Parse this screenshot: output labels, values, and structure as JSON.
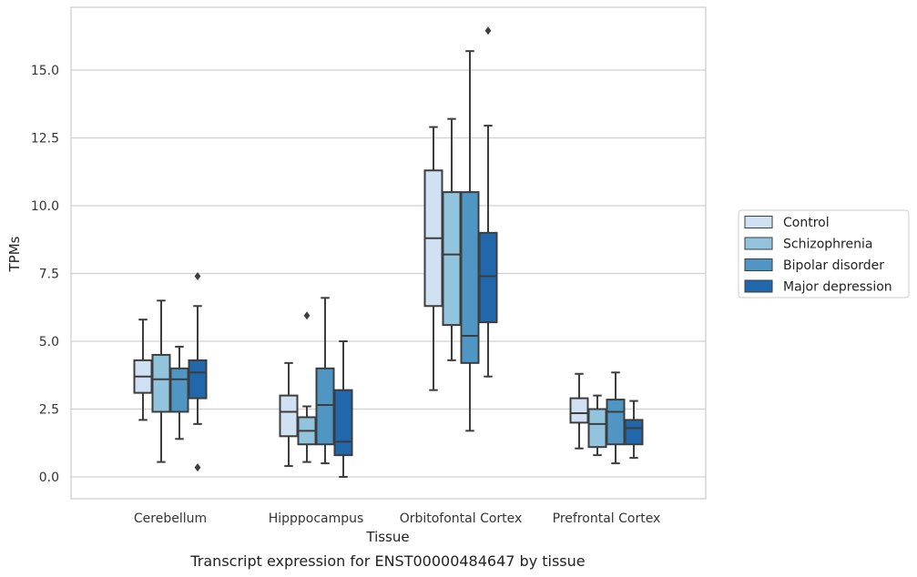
{
  "caption": "Transcript expression for ENST00000484647 by tissue",
  "chart_data": {
    "type": "box",
    "xlabel": "Tissue",
    "ylabel": "TPMs",
    "ylim": [
      -0.8,
      17.5
    ],
    "yticks": [
      0.0,
      2.5,
      5.0,
      7.5,
      10.0,
      12.5,
      15.0
    ],
    "ytick_labels": [
      "0.0",
      "2.5",
      "5.0",
      "7.5",
      "10.0",
      "12.5",
      "15.0"
    ],
    "grid": "horizontal",
    "legend_position": "right",
    "categories": [
      "Cerebellum",
      "Hipppocampus",
      "Orbitofontal Cortex",
      "Prefrontal Cortex"
    ],
    "series": [
      {
        "name": "Control",
        "color": "#cfe1f2",
        "boxes": [
          {
            "whislo": 2.1,
            "q1": 3.1,
            "med": 3.7,
            "q3": 4.3,
            "whishi": 5.8,
            "fliers": []
          },
          {
            "whislo": 0.4,
            "q1": 1.5,
            "med": 2.4,
            "q3": 3.0,
            "whishi": 4.2,
            "fliers": []
          },
          {
            "whislo": 3.2,
            "q1": 6.3,
            "med": 8.8,
            "q3": 11.3,
            "whishi": 12.9,
            "fliers": []
          },
          {
            "whislo": 1.05,
            "q1": 2.0,
            "med": 2.35,
            "q3": 2.9,
            "whishi": 3.8,
            "fliers": []
          }
        ]
      },
      {
        "name": "Schizophrenia",
        "color": "#93c4de",
        "boxes": [
          {
            "whislo": 0.55,
            "q1": 2.4,
            "med": 3.6,
            "q3": 4.5,
            "whishi": 6.5,
            "fliers": []
          },
          {
            "whislo": 0.55,
            "q1": 1.2,
            "med": 1.7,
            "q3": 2.2,
            "whishi": 2.6,
            "fliers": [
              5.95
            ]
          },
          {
            "whislo": 4.3,
            "q1": 5.6,
            "med": 8.2,
            "q3": 10.5,
            "whishi": 13.2,
            "fliers": []
          },
          {
            "whislo": 0.8,
            "q1": 1.1,
            "med": 1.95,
            "q3": 2.5,
            "whishi": 3.0,
            "fliers": []
          }
        ]
      },
      {
        "name": "Bipolar disorder",
        "color": "#4f96c4",
        "boxes": [
          {
            "whislo": 1.4,
            "q1": 2.4,
            "med": 3.6,
            "q3": 4.0,
            "whishi": 4.8,
            "fliers": []
          },
          {
            "whislo": 0.5,
            "q1": 1.2,
            "med": 2.65,
            "q3": 4.0,
            "whishi": 6.6,
            "fliers": []
          },
          {
            "whislo": 1.7,
            "q1": 4.2,
            "med": 5.2,
            "q3": 10.5,
            "whishi": 15.7,
            "fliers": []
          },
          {
            "whislo": 0.5,
            "q1": 1.2,
            "med": 2.4,
            "q3": 2.85,
            "whishi": 3.85,
            "fliers": []
          }
        ]
      },
      {
        "name": "Major depression",
        "color": "#2167ac",
        "boxes": [
          {
            "whislo": 1.95,
            "q1": 2.9,
            "med": 3.85,
            "q3": 4.3,
            "whishi": 6.3,
            "fliers": [
              7.4,
              0.35
            ]
          },
          {
            "whislo": 0.0,
            "q1": 0.8,
            "med": 1.3,
            "q3": 3.2,
            "whishi": 5.0,
            "fliers": []
          },
          {
            "whislo": 3.7,
            "q1": 5.7,
            "med": 7.4,
            "q3": 9.0,
            "whishi": 12.95,
            "fliers": [
              16.45
            ]
          },
          {
            "whislo": 0.7,
            "q1": 1.2,
            "med": 1.8,
            "q3": 2.1,
            "whishi": 2.8,
            "fliers": []
          }
        ]
      }
    ]
  }
}
